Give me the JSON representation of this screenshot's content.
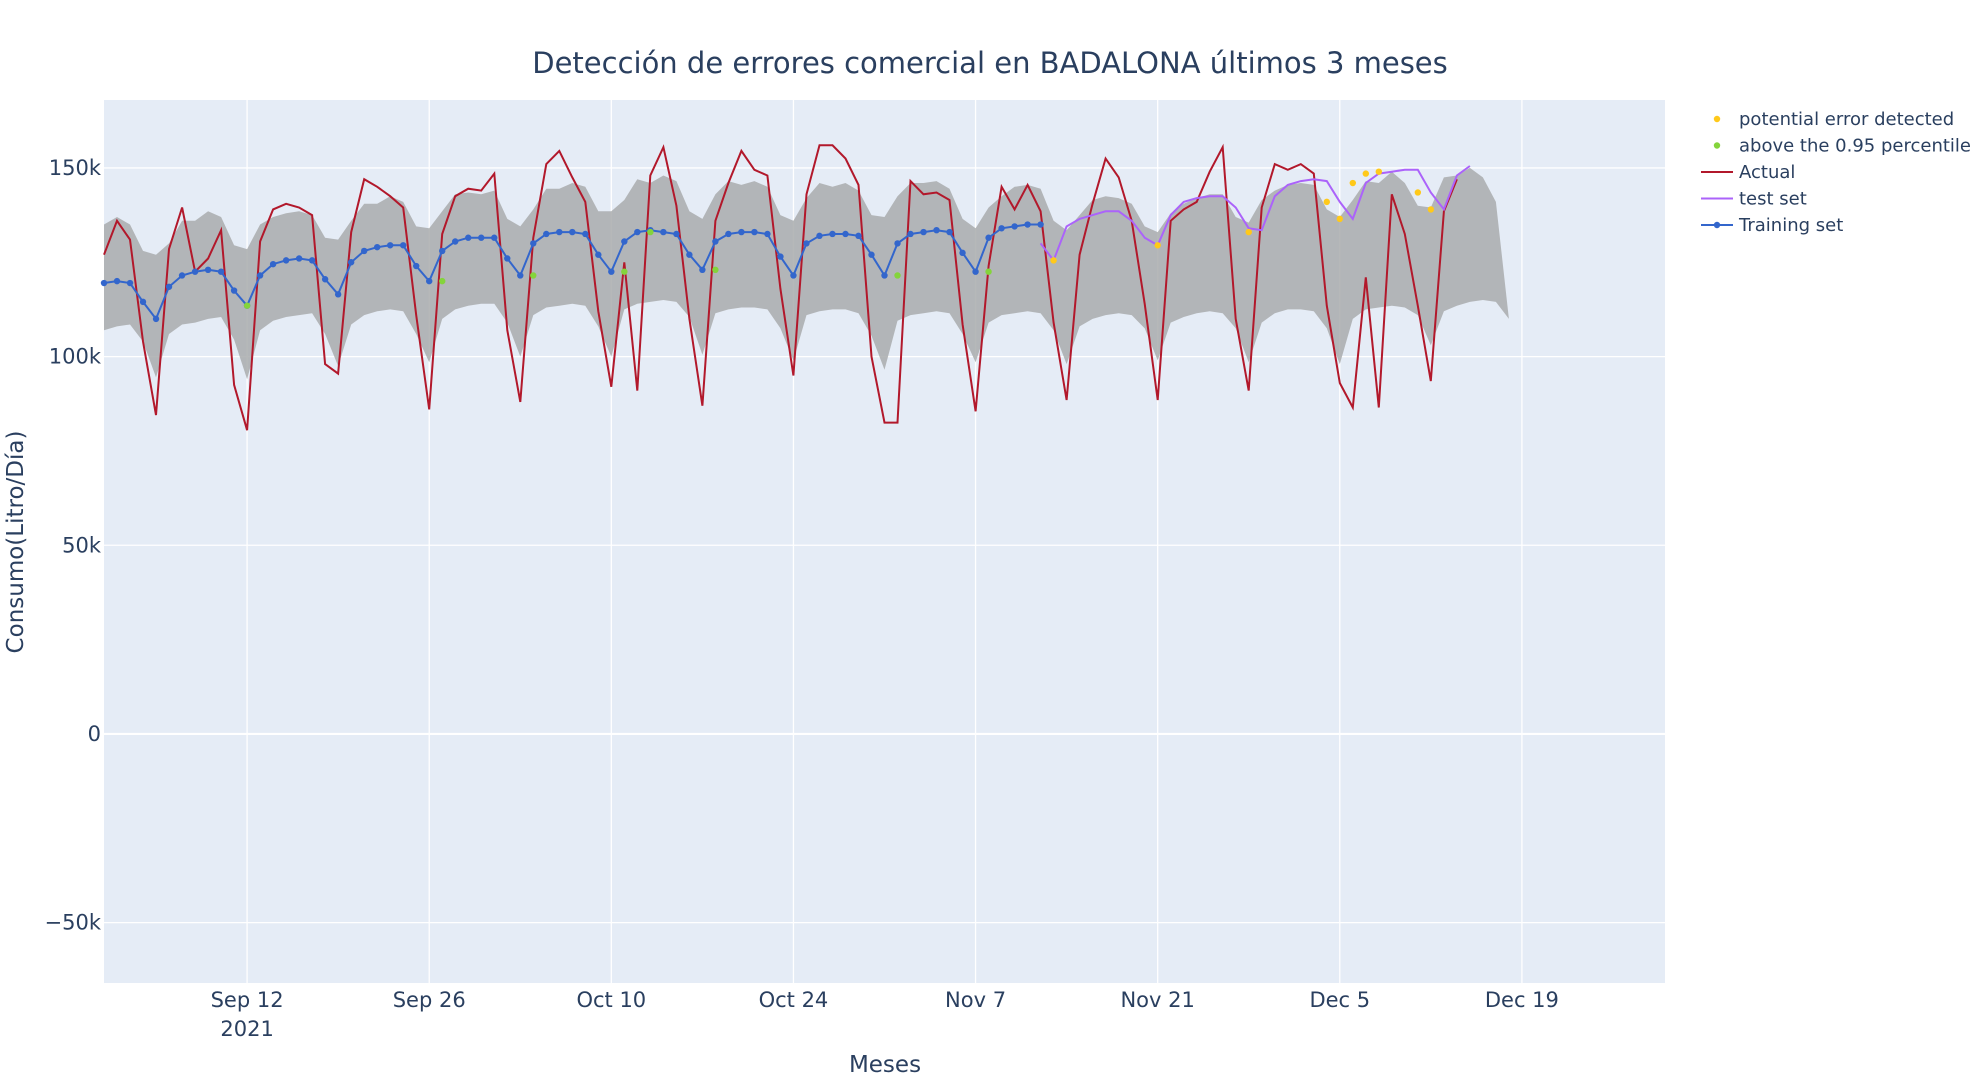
{
  "chart_data": {
    "type": "line",
    "title": "Detección de errores comercial en BADALONA últimos 3 meses",
    "xlabel": "Meses",
    "ylabel": "Consumo(Litro/Día)",
    "x_range": [
      "2021-09-01",
      "2021-12-30"
    ],
    "ylim": [
      -66000,
      168000
    ],
    "x_ticks": [
      {
        "date": "2021-09-12",
        "label": "Sep 12",
        "sublabel": "2021"
      },
      {
        "date": "2021-09-26",
        "label": "Sep 26",
        "sublabel": ""
      },
      {
        "date": "2021-10-10",
        "label": "Oct 10",
        "sublabel": ""
      },
      {
        "date": "2021-10-24",
        "label": "Oct 24",
        "sublabel": ""
      },
      {
        "date": "2021-11-07",
        "label": "Nov 7",
        "sublabel": ""
      },
      {
        "date": "2021-11-21",
        "label": "Nov 21",
        "sublabel": ""
      },
      {
        "date": "2021-12-05",
        "label": "Dec 5",
        "sublabel": ""
      },
      {
        "date": "2021-12-19",
        "label": "Dec 19",
        "sublabel": ""
      }
    ],
    "y_ticks": [
      {
        "value": 150000,
        "label": "150k"
      },
      {
        "value": 100000,
        "label": "100k"
      },
      {
        "value": 50000,
        "label": "50k"
      },
      {
        "value": 0,
        "label": "0"
      },
      {
        "value": -50000,
        "label": "−50k"
      }
    ],
    "grid": true,
    "legend_position": "top-right",
    "colors": {
      "plot_bg": "#e5ecf6",
      "band": "#a9abad",
      "actual": "#b2182b",
      "test": "#ab63fa",
      "training": "#3366cc",
      "error_marker": "#ffc91a",
      "above_marker": "#84d43b"
    },
    "legend": [
      {
        "name": "potential error detected",
        "kind": "marker",
        "color": "#ffc91a"
      },
      {
        "name": "above the 0.95 percentile",
        "kind": "marker",
        "color": "#84d43b"
      },
      {
        "name": "Actual",
        "kind": "line",
        "color": "#b2182b"
      },
      {
        "name": "test set",
        "kind": "line",
        "color": "#ab63fa"
      },
      {
        "name": "Training set",
        "kind": "line-marker",
        "color": "#3366cc"
      }
    ],
    "start_date": "2021-09-01",
    "series": [
      {
        "name": "Actual",
        "values": [
          127000,
          136000,
          131000,
          104000,
          84500,
          128500,
          139500,
          122500,
          126000,
          133500,
          92500,
          80500,
          130500,
          139000,
          140500,
          139500,
          137500,
          98000,
          95500,
          133000,
          147000,
          145000,
          142500,
          139500,
          111000,
          86000,
          132500,
          142500,
          144500,
          144000,
          148500,
          107000,
          88000,
          131500,
          151000,
          154500,
          147500,
          141000,
          112000,
          92000,
          125000,
          91000,
          148000,
          155500,
          140000,
          110000,
          87000,
          136000,
          146000,
          154500,
          149500,
          148000,
          118000,
          95000,
          143000,
          156000,
          156000,
          152500,
          145500,
          100000,
          82500,
          82500,
          146500,
          143000,
          143500,
          141500,
          108500,
          85500,
          124000,
          145000,
          139000,
          145500,
          138500,
          109000,
          88500,
          127000,
          140500,
          152500,
          147500,
          136000,
          114000,
          88500,
          136000,
          139000,
          141000,
          149000,
          155500,
          110000,
          91000,
          139500,
          151000,
          149500,
          151000,
          148500,
          113500,
          93000,
          86500,
          121000,
          86500,
          143000,
          132500,
          113500,
          93500,
          138500,
          147000
        ],
        "offset_days": 0
      },
      {
        "name": "test set",
        "values": [
          130000,
          125500,
          134500,
          136500,
          137500,
          138500,
          138500,
          136000,
          131500,
          129500,
          137500,
          141000,
          142000,
          142500,
          142500,
          139500,
          134000,
          133500,
          142500,
          145500,
          146500,
          147000,
          146500,
          141000,
          136500,
          146000,
          148500,
          149000,
          149500,
          149500,
          143500,
          139000,
          148000,
          150500
        ],
        "offset_days": 72
      },
      {
        "name": "Training set",
        "values": [
          119500,
          120000,
          119500,
          114500,
          110000,
          118500,
          121500,
          122500,
          123000,
          122500,
          117500,
          113500,
          121500,
          124500,
          125500,
          126000,
          125500,
          120500,
          116500,
          125000,
          128000,
          129000,
          129500,
          129500,
          124000,
          120000,
          128000,
          130500,
          131500,
          131500,
          131500,
          126000,
          121500,
          130000,
          132500,
          133000,
          133000,
          132500,
          127000,
          122500,
          130500,
          133000,
          133500,
          133000,
          132500,
          127000,
          123000,
          130500,
          132500,
          133000,
          133000,
          132500,
          126500,
          121500,
          130000,
          132000,
          132500,
          132500,
          132000,
          127000,
          121500,
          130000,
          132500,
          133000,
          133500,
          133000,
          127500,
          122500,
          131500,
          134000,
          134500,
          135000,
          135000
        ],
        "offset_days": 0
      }
    ],
    "band_upper": [
      135000,
      137000,
      135000,
      128000,
      127000,
      130000,
      136000,
      136000,
      138500,
      137000,
      129500,
      128500,
      135000,
      137000,
      138000,
      138500,
      137500,
      131500,
      131000,
      136000,
      140500,
      140500,
      142500,
      141000,
      134500,
      134000,
      138500,
      143000,
      143500,
      143000,
      144000,
      136500,
      134500,
      139000,
      144500,
      144500,
      146000,
      145000,
      138500,
      138500,
      141500,
      147000,
      146000,
      148000,
      146500,
      138500,
      136500,
      143000,
      146500,
      145500,
      146500,
      145000,
      137500,
      136000,
      142000,
      146000,
      145000,
      146000,
      144000,
      137500,
      137000,
      142500,
      146000,
      146000,
      146500,
      144500,
      136500,
      134000,
      139500,
      142500,
      145000,
      145500,
      144500,
      136000,
      133500,
      137500,
      141500,
      142500,
      142000,
      140500,
      134500,
      133000,
      138000,
      140500,
      142000,
      143000,
      143000,
      137000,
      135500,
      141500,
      144000,
      145500,
      146000,
      145500,
      139000,
      137000,
      141500,
      146500,
      146000,
      149000,
      146000,
      140000,
      139500,
      147500,
      148000,
      150000,
      147500,
      141000
    ],
    "band_lower": [
      107000,
      108000,
      108500,
      104000,
      94500,
      106000,
      108500,
      109000,
      110000,
      110500,
      104500,
      94000,
      107000,
      109500,
      110500,
      111000,
      111500,
      106000,
      97500,
      108500,
      111000,
      112000,
      112500,
      112000,
      106000,
      98500,
      110000,
      112500,
      113500,
      114000,
      114000,
      109000,
      100000,
      111000,
      113000,
      113500,
      114000,
      113500,
      108000,
      100000,
      112500,
      114000,
      114500,
      115000,
      114500,
      110500,
      100500,
      111500,
      112500,
      113000,
      113000,
      112500,
      107500,
      99000,
      111000,
      112000,
      112500,
      112500,
      111500,
      105500,
      96500,
      109500,
      111000,
      111500,
      112000,
      111500,
      106000,
      98500,
      109000,
      111000,
      111500,
      112000,
      111500,
      107000,
      98000,
      108000,
      110000,
      111000,
      111500,
      111000,
      107500,
      99000,
      109000,
      110500,
      111500,
      112000,
      111500,
      107500,
      98500,
      109000,
      111500,
      112500,
      112500,
      112000,
      107500,
      98000,
      110000,
      112500,
      113000,
      113500,
      113000,
      111000,
      103000,
      112000,
      113500,
      114500,
      115000,
      114500,
      110000
    ],
    "potential_error_detected": [
      {
        "date": "2021-11-13",
        "y": 125500
      },
      {
        "date": "2021-11-21",
        "y": 129500
      },
      {
        "date": "2021-11-28",
        "y": 133000
      },
      {
        "date": "2021-12-04",
        "y": 141000
      },
      {
        "date": "2021-12-05",
        "y": 136500
      },
      {
        "date": "2021-12-06",
        "y": 146000
      },
      {
        "date": "2021-12-07",
        "y": 148500
      },
      {
        "date": "2021-12-08",
        "y": 149000
      },
      {
        "date": "2021-12-11",
        "y": 143500
      },
      {
        "date": "2021-12-12",
        "y": 139000
      }
    ],
    "above_095_percentile": [
      {
        "date": "2021-09-12",
        "y": 113500
      },
      {
        "date": "2021-09-27",
        "y": 120000
      },
      {
        "date": "2021-10-04",
        "y": 121500
      },
      {
        "date": "2021-10-11",
        "y": 122500
      },
      {
        "date": "2021-10-13",
        "y": 133000
      },
      {
        "date": "2021-10-18",
        "y": 123000
      },
      {
        "date": "2021-11-01",
        "y": 121500
      },
      {
        "date": "2021-11-08",
        "y": 122500
      }
    ]
  }
}
